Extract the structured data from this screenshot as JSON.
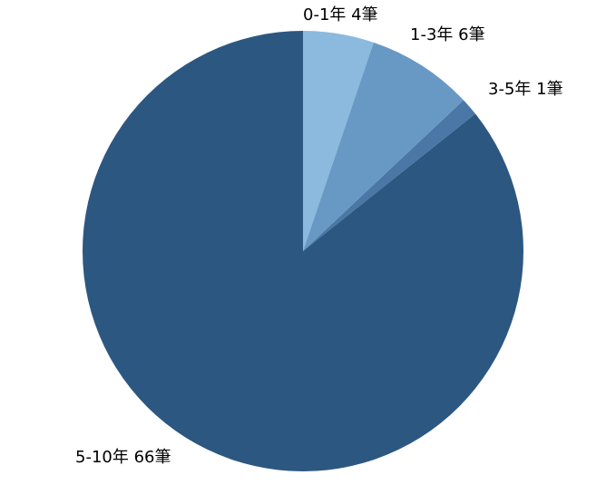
{
  "chart_data": {
    "type": "pie",
    "title": "",
    "slices": [
      {
        "category": "0-1年",
        "value": 4,
        "label": "0-1年 4筆",
        "color": "#8cb9de"
      },
      {
        "category": "1-3年",
        "value": 6,
        "label": "1-3年 6筆",
        "color": "#6899c4"
      },
      {
        "category": "3-5年",
        "value": 1,
        "label": "3-5年 1筆",
        "color": "#4a77a5"
      },
      {
        "category": "5-10年",
        "value": 66,
        "label": "5-10年 66筆",
        "color": "#2c5781"
      }
    ],
    "legend": "none",
    "start_angle": "12 o'clock",
    "direction": "clockwise"
  }
}
